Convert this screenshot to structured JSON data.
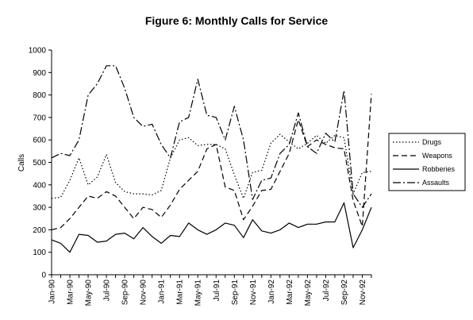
{
  "chart_data": {
    "type": "line",
    "title": "Figure 6: Monthly Calls for Service",
    "xlabel": "",
    "ylabel": "Calls",
    "ylim": [
      0,
      1000
    ],
    "yticks": [
      0,
      100,
      200,
      300,
      400,
      500,
      600,
      700,
      800,
      900,
      1000
    ],
    "grid": false,
    "legend_position": "right",
    "categories": [
      "Jan-90",
      "Feb-90",
      "Mar-90",
      "Apr-90",
      "May-90",
      "Jun-90",
      "Jul-90",
      "Aug-90",
      "Sep-90",
      "Oct-90",
      "Nov-90",
      "Dec-90",
      "Jan-91",
      "Feb-91",
      "Mar-91",
      "Apr-91",
      "May-91",
      "Jun-91",
      "Jul-91",
      "Aug-91",
      "Sep-91",
      "Oct-91",
      "Nov-91",
      "Dec-91",
      "Jan-92",
      "Feb-92",
      "Mar-92",
      "Apr-92",
      "May-92",
      "Jun-92",
      "Jul-92",
      "Aug-92",
      "Sep-92",
      "Oct-92",
      "Nov-92",
      "Dec-92"
    ],
    "tick_labels": [
      "Jan-90",
      "Mar-90",
      "May-90",
      "Jul-90",
      "Sep-90",
      "Nov-90",
      "Jan-91",
      "Mar-91",
      "May-91",
      "Jul-91",
      "Sep-91",
      "Nov-91",
      "Jan-92",
      "Mar-92",
      "May-92",
      "Jul-92",
      "Sep-92",
      "Nov-92"
    ],
    "series": [
      {
        "name": "Drugs",
        "dash": "1.5,2.5",
        "values": [
          340,
          345,
          420,
          520,
          400,
          435,
          535,
          410,
          370,
          360,
          360,
          355,
          375,
          520,
          600,
          610,
          575,
          580,
          580,
          560,
          445,
          340,
          455,
          465,
          585,
          625,
          590,
          560,
          585,
          620,
          585,
          620,
          610,
          360,
          455,
          460
        ]
      },
      {
        "name": "Weapons",
        "dash": "7,4",
        "values": [
          200,
          210,
          250,
          300,
          350,
          340,
          370,
          350,
          300,
          250,
          300,
          290,
          255,
          310,
          380,
          420,
          460,
          560,
          580,
          390,
          375,
          245,
          305,
          375,
          380,
          460,
          540,
          690,
          570,
          600,
          580,
          565,
          560,
          330,
          215,
          805
        ]
      },
      {
        "name": "Robberies",
        "dash": "",
        "values": [
          155,
          140,
          100,
          180,
          175,
          145,
          150,
          180,
          185,
          160,
          210,
          170,
          140,
          175,
          170,
          230,
          200,
          180,
          200,
          230,
          220,
          165,
          245,
          195,
          185,
          200,
          230,
          210,
          225,
          225,
          235,
          235,
          320,
          120,
          200,
          300
        ]
      },
      {
        "name": "Assaults",
        "dash": "10,3,2,3",
        "values": [
          520,
          540,
          530,
          600,
          800,
          850,
          930,
          930,
          830,
          700,
          660,
          670,
          580,
          520,
          680,
          700,
          870,
          710,
          700,
          600,
          750,
          600,
          335,
          420,
          430,
          540,
          580,
          720,
          570,
          540,
          630,
          590,
          820,
          360,
          300,
          360
        ]
      }
    ]
  }
}
